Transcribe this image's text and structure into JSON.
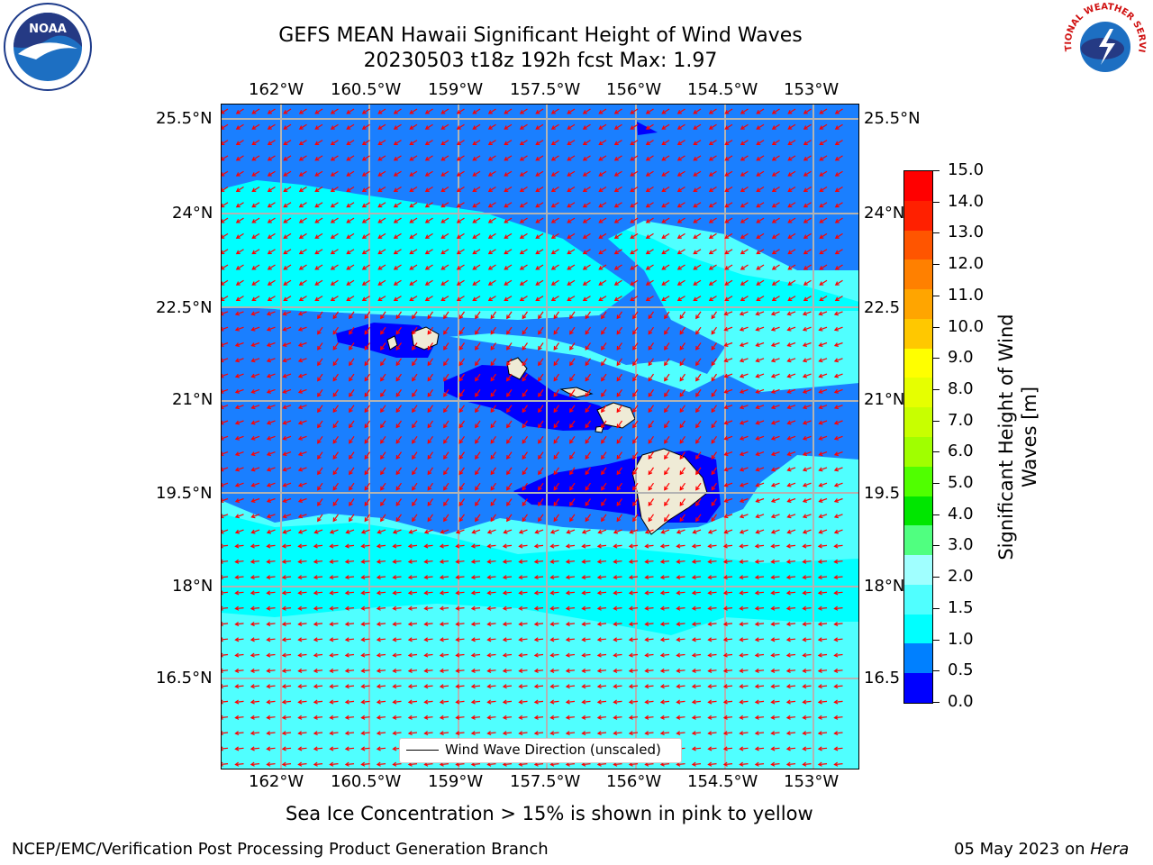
{
  "title": {
    "line1": "GEFS MEAN Hawaii Significant Height of Wind Waves",
    "line2": "20230503 t18z 192h fcst   Max: 1.97"
  },
  "axes": {
    "lon_ticks": [
      "162°W",
      "160.5°W",
      "159°W",
      "157.5°W",
      "156°W",
      "154.5°W",
      "153°W"
    ],
    "lat_ticks": [
      "25.5°N",
      "24°N",
      "22.5°N",
      "21°N",
      "19.5°N",
      "18°N",
      "16.5°N"
    ],
    "lat_ticks_right": [
      "25.5°N",
      "24°N",
      "22.5",
      "21°N",
      "19.5",
      "18°N",
      "16.5"
    ]
  },
  "legend": {
    "label": "Wind Wave Direction (unscaled)"
  },
  "colorbar": {
    "title_line1": "Significant Height of Wind",
    "title_line2": "Waves [m]",
    "levels": [
      "15.0",
      "14.0",
      "13.0",
      "12.0",
      "11.0",
      "10.0",
      "9.0",
      "8.0",
      "7.0",
      "6.0",
      "5.0",
      "4.0",
      "3.0",
      "2.0",
      "1.5",
      "1.0",
      "0.5",
      "0.0"
    ],
    "colors": [
      "#ff0000",
      "#ff2000",
      "#ff5500",
      "#ff8000",
      "#ffa500",
      "#ffc800",
      "#ffff00",
      "#e6ff00",
      "#c8ff00",
      "#a0ff00",
      "#50ff00",
      "#00e600",
      "#50ff80",
      "#a0ffff",
      "#50ffff",
      "#00ffff",
      "#0080ff",
      "#0000ff"
    ]
  },
  "map_colors": {
    "dark": "#0000ff",
    "mid": "#1a7fff",
    "cyan": "#00ffff",
    "light": "#50ffff",
    "land": "#efebd6",
    "arrow": "#ff0000"
  },
  "notice": "Sea Ice Concentration > 15% is shown in pink to yellow",
  "footer": {
    "left": "NCEP/EMC/Verification Post Processing Product Generation Branch",
    "date": "05 May 2023 on ",
    "host": "Hera"
  },
  "logos": {
    "noaa_text": "NOAA",
    "nws_text": "NATIONAL WEATHER SERVICE"
  }
}
